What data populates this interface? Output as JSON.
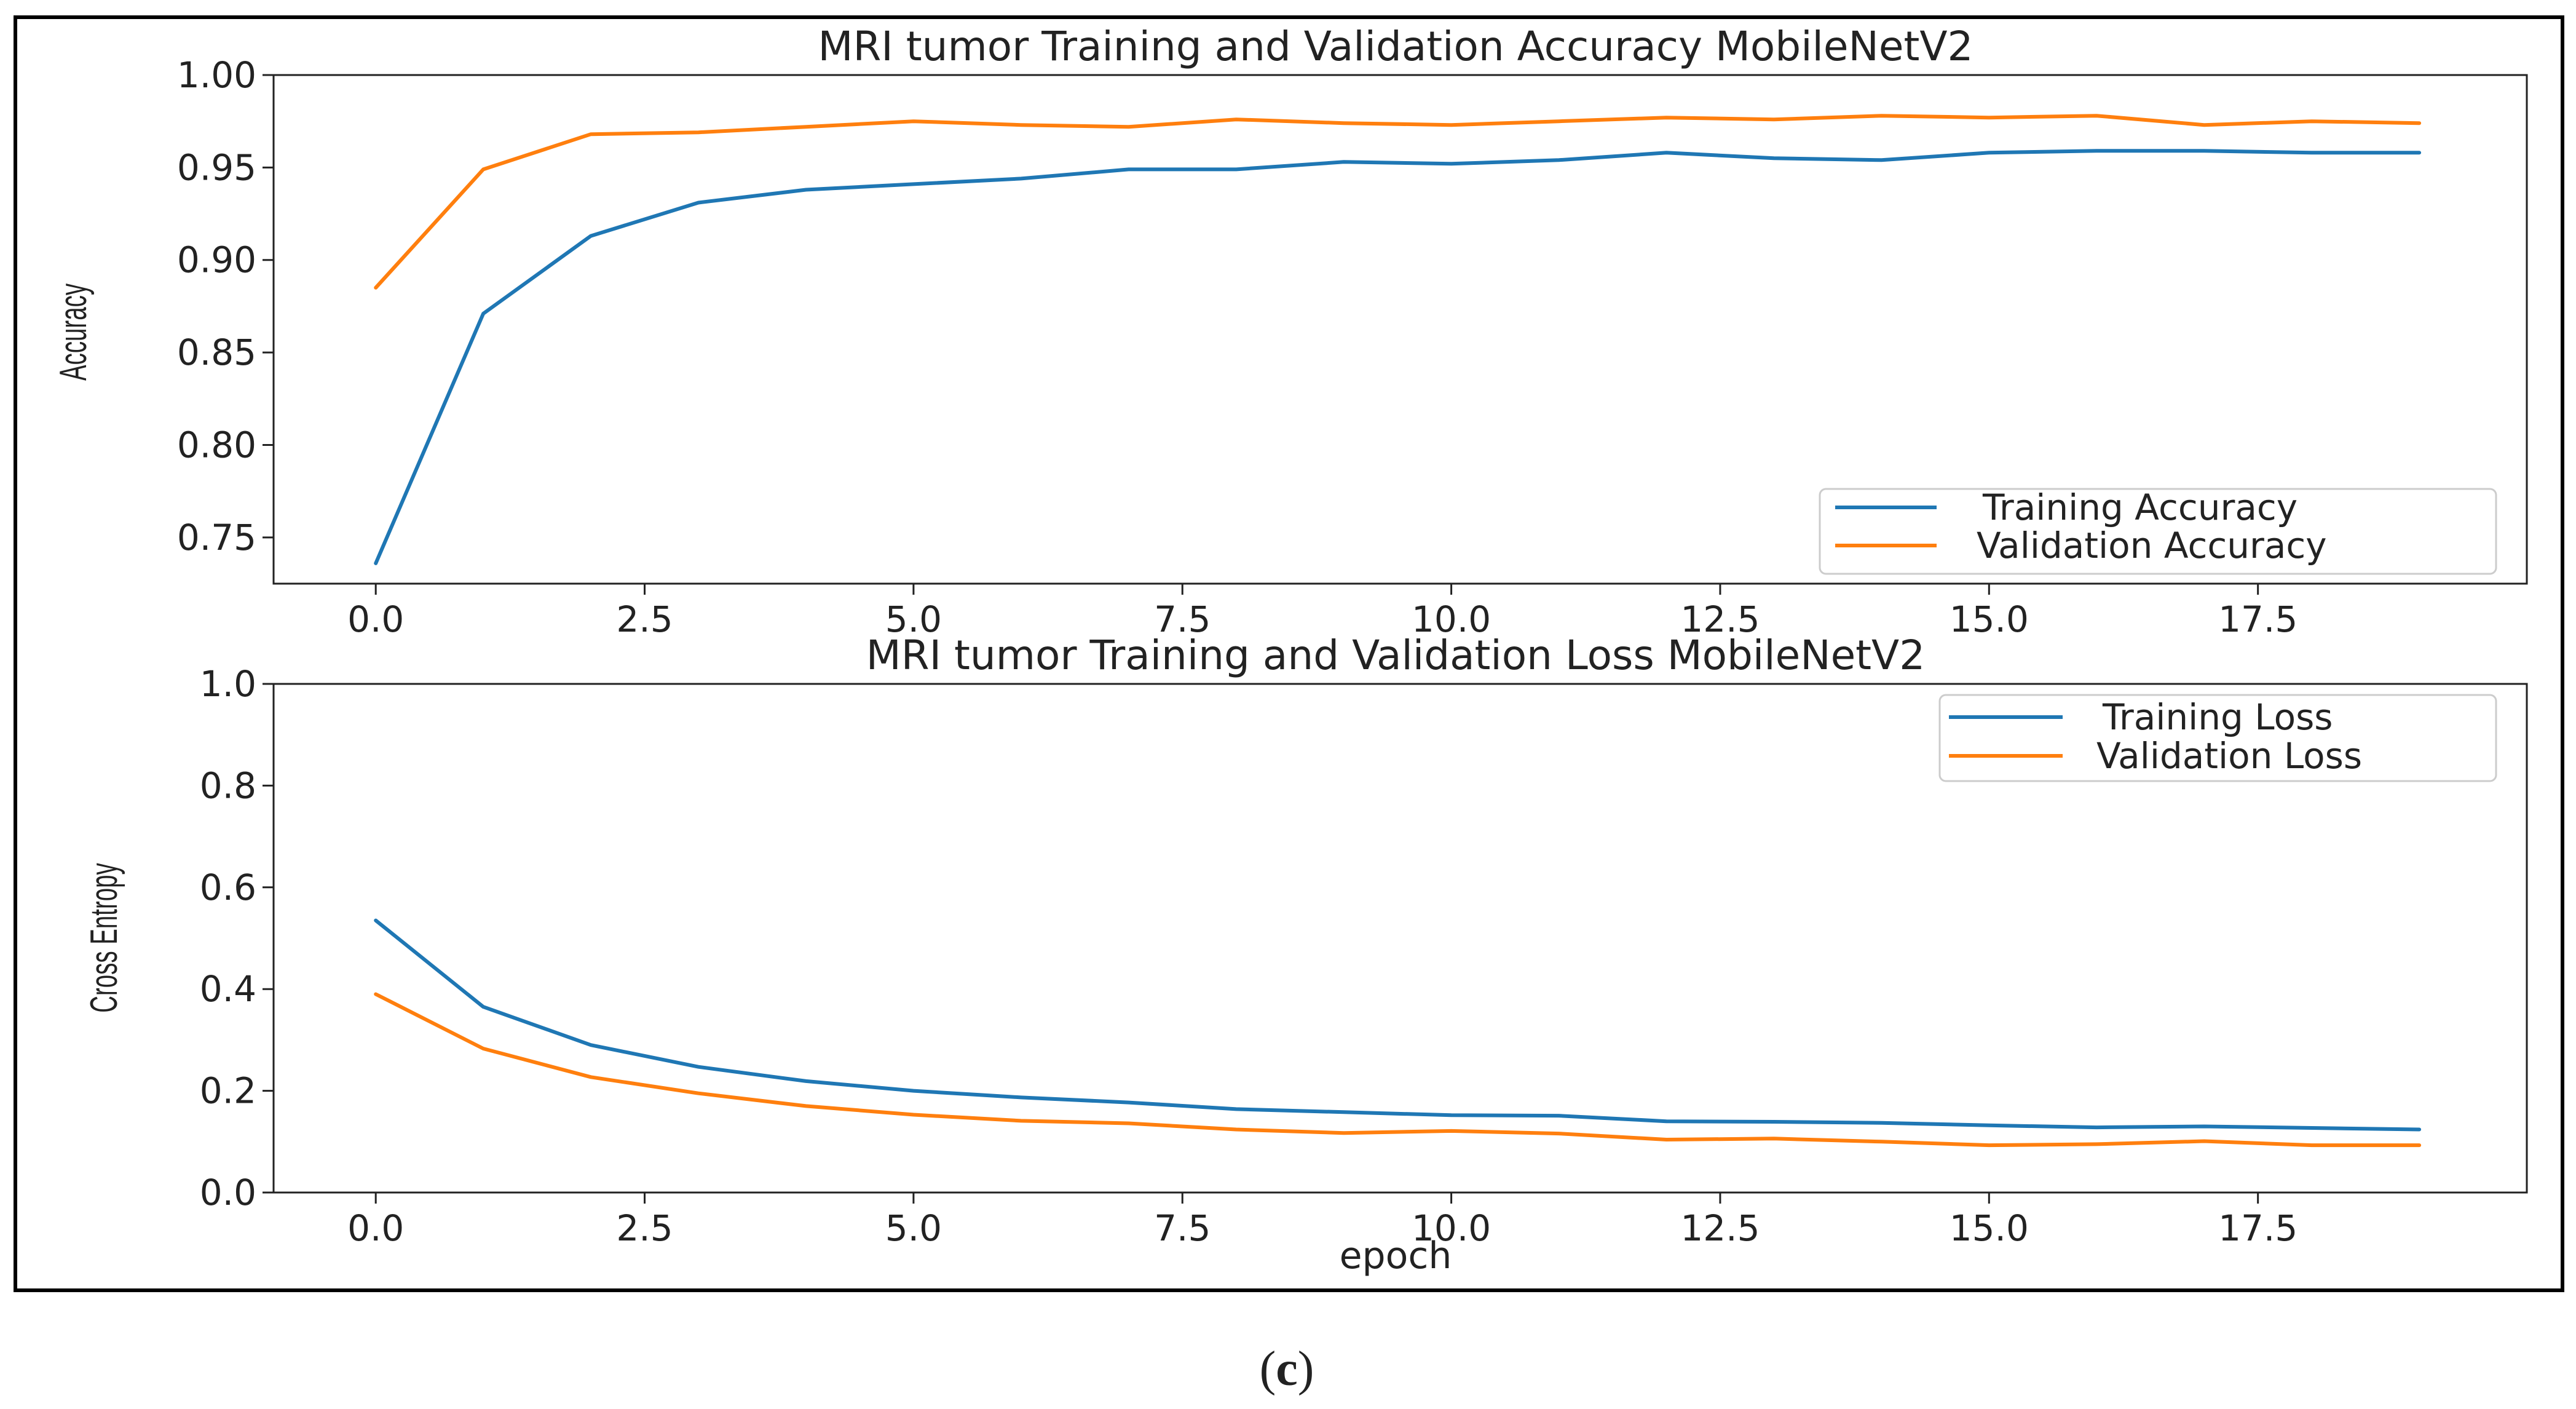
{
  "figure": {
    "caption_open": "(",
    "caption_letter": "c",
    "caption_close": ")",
    "frame_color": "#000000"
  },
  "colors": {
    "training": "#1f77b4",
    "validation": "#ff7f0e"
  },
  "chart_data": [
    {
      "type": "line",
      "title": "MRI tumor Training and Validation Accuracy MobileNetV2",
      "xlabel": "",
      "ylabel": "Accuracy",
      "xlim": [
        -0.95,
        20.0
      ],
      "ylim": [
        0.725,
        1.0
      ],
      "xticks": [
        0.0,
        2.5,
        5.0,
        7.5,
        10.0,
        12.5,
        15.0,
        17.5
      ],
      "xtick_labels": [
        "0.0",
        "2.5",
        "5.0",
        "7.5",
        "10.0",
        "12.5",
        "15.0",
        "17.5"
      ],
      "yticks": [
        0.75,
        0.8,
        0.85,
        0.9,
        0.95,
        1.0
      ],
      "ytick_labels": [
        "0.75",
        "0.80",
        "0.85",
        "0.90",
        "0.95",
        "1.00"
      ],
      "legend_position": "lower-right",
      "x": [
        0,
        1,
        2,
        3,
        4,
        5,
        6,
        7,
        8,
        9,
        10,
        11,
        12,
        13,
        14,
        15,
        16,
        17,
        18,
        19
      ],
      "series": [
        {
          "name": "Training Accuracy",
          "color_key": "training",
          "values": [
            0.736,
            0.871,
            0.913,
            0.931,
            0.938,
            0.941,
            0.944,
            0.949,
            0.949,
            0.953,
            0.952,
            0.954,
            0.958,
            0.955,
            0.954,
            0.958,
            0.959,
            0.959,
            0.958,
            0.958
          ]
        },
        {
          "name": "Validation Accuracy",
          "color_key": "validation",
          "values": [
            0.885,
            0.949,
            0.968,
            0.969,
            0.972,
            0.975,
            0.973,
            0.972,
            0.976,
            0.974,
            0.973,
            0.975,
            0.977,
            0.976,
            0.978,
            0.977,
            0.978,
            0.973,
            0.975,
            0.974
          ]
        }
      ]
    },
    {
      "type": "line",
      "title": "MRI tumor Training and Validation Loss MobileNetV2",
      "xlabel": "epoch",
      "ylabel": "Cross Entropy",
      "xlim": [
        -0.95,
        20.0
      ],
      "ylim": [
        0.0,
        1.0
      ],
      "xticks": [
        0.0,
        2.5,
        5.0,
        7.5,
        10.0,
        12.5,
        15.0,
        17.5
      ],
      "xtick_labels": [
        "0.0",
        "2.5",
        "5.0",
        "7.5",
        "10.0",
        "12.5",
        "15.0",
        "17.5"
      ],
      "yticks": [
        0.0,
        0.2,
        0.4,
        0.6,
        0.8,
        1.0
      ],
      "ytick_labels": [
        "0.0",
        "0.2",
        "0.4",
        "0.6",
        "0.8",
        "1.0"
      ],
      "legend_position": "upper-right",
      "x": [
        0,
        1,
        2,
        3,
        4,
        5,
        6,
        7,
        8,
        9,
        10,
        11,
        12,
        13,
        14,
        15,
        16,
        17,
        18,
        19
      ],
      "series": [
        {
          "name": "Training Loss",
          "color_key": "training",
          "values": [
            0.535,
            0.365,
            0.29,
            0.247,
            0.219,
            0.2,
            0.187,
            0.177,
            0.164,
            0.158,
            0.152,
            0.151,
            0.14,
            0.139,
            0.137,
            0.132,
            0.128,
            0.13,
            0.127,
            0.124
          ]
        },
        {
          "name": "Validation Loss",
          "color_key": "validation",
          "values": [
            0.39,
            0.283,
            0.227,
            0.195,
            0.17,
            0.153,
            0.141,
            0.136,
            0.124,
            0.117,
            0.121,
            0.116,
            0.104,
            0.106,
            0.1,
            0.093,
            0.095,
            0.101,
            0.093,
            0.093
          ]
        }
      ]
    }
  ]
}
